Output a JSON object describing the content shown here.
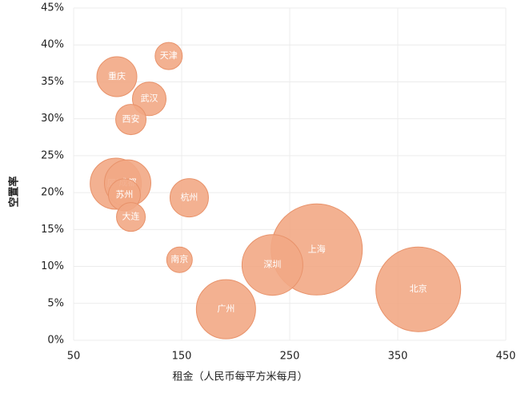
{
  "chart_data": {
    "type": "bubble",
    "x_label": "租金（人民币每平方米每月）",
    "y_label": "空置率",
    "categories": [
      "天津",
      "重庆",
      "武汉",
      "西安",
      "厦门",
      "成都",
      "苏州",
      "杭州",
      "大连",
      "南京",
      "上海",
      "深圳",
      "广州",
      "北京"
    ],
    "x": [
      138,
      90,
      120,
      103,
      89,
      100,
      97,
      157,
      103,
      148,
      275,
      234,
      191,
      369
    ],
    "values": [
      38.5,
      35.7,
      32.7,
      29.9,
      21.2,
      21.3,
      19.7,
      19.3,
      16.7,
      10.9,
      12.3,
      10.2,
      4.2,
      6.9
    ],
    "sizes": [
      17,
      25,
      21,
      19,
      32,
      29,
      20,
      24,
      18,
      16,
      57,
      38,
      37,
      53
    ],
    "color": "#f2a985",
    "xlim": [
      50,
      450
    ],
    "xticks": [
      50,
      150,
      250,
      350,
      450
    ],
    "ylim": [
      0,
      45
    ],
    "yticks": [
      {
        "value": 0,
        "label": "0%"
      },
      {
        "value": 5,
        "label": "5%"
      },
      {
        "value": 10,
        "label": "10%"
      },
      {
        "value": 15,
        "label": "15%"
      },
      {
        "value": 20,
        "label": "20%"
      },
      {
        "value": 25,
        "label": "25%"
      },
      {
        "value": 30,
        "label": "30%"
      },
      {
        "value": 35,
        "label": "35%"
      },
      {
        "value": 40,
        "label": "40%"
      },
      {
        "value": 45,
        "label": "45%"
      }
    ],
    "grid": true
  }
}
